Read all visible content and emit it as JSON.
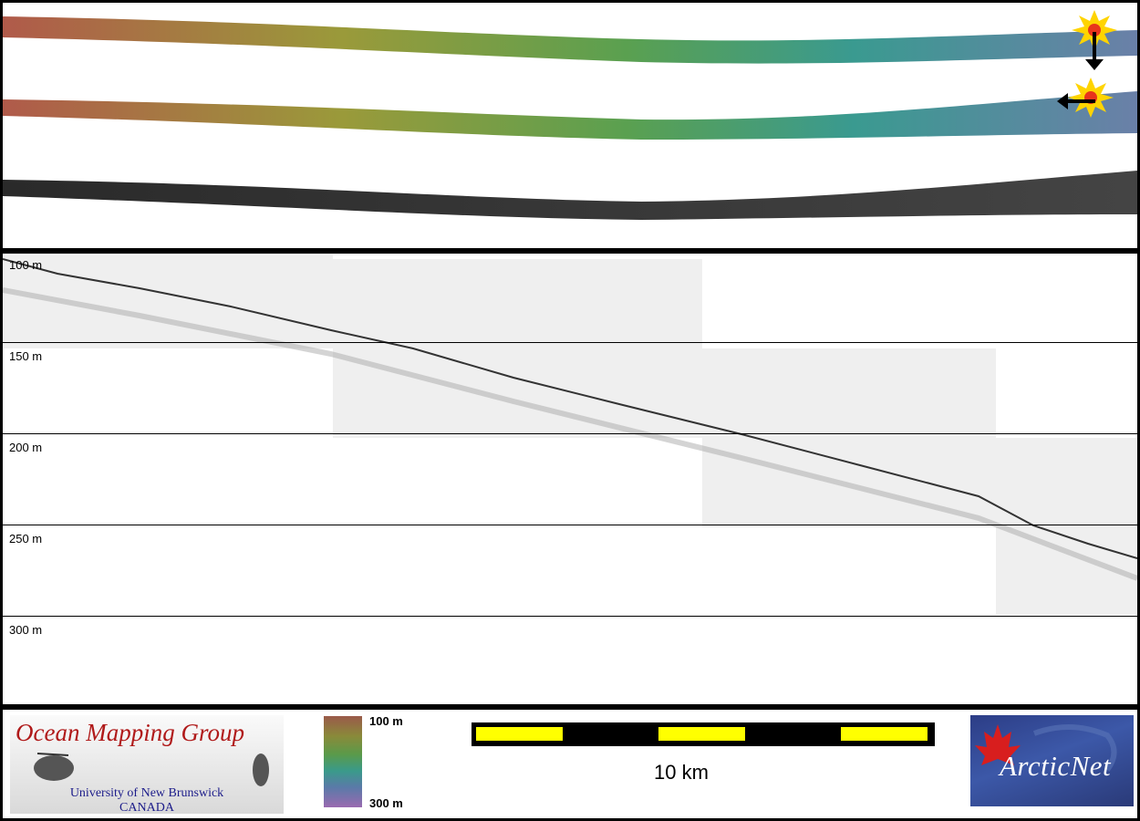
{
  "depth_labels": [
    "100 m",
    "150 m",
    "200 m",
    "250 m",
    "300 m"
  ],
  "logo": {
    "title": "Ocean Mapping Group",
    "subtitle_line1": "University of New Brunswick",
    "subtitle_line2": "CANADA"
  },
  "colorbar": {
    "top_label": "100 m",
    "bottom_label": "300 m"
  },
  "scalebar": {
    "label": "10 km",
    "fill_color": "#ffff00"
  },
  "partner_logo": {
    "text": "ArcticNet"
  },
  "colors": {
    "frame": "#000000",
    "starburst": "#ffd400",
    "marker": "#e8341c"
  }
}
